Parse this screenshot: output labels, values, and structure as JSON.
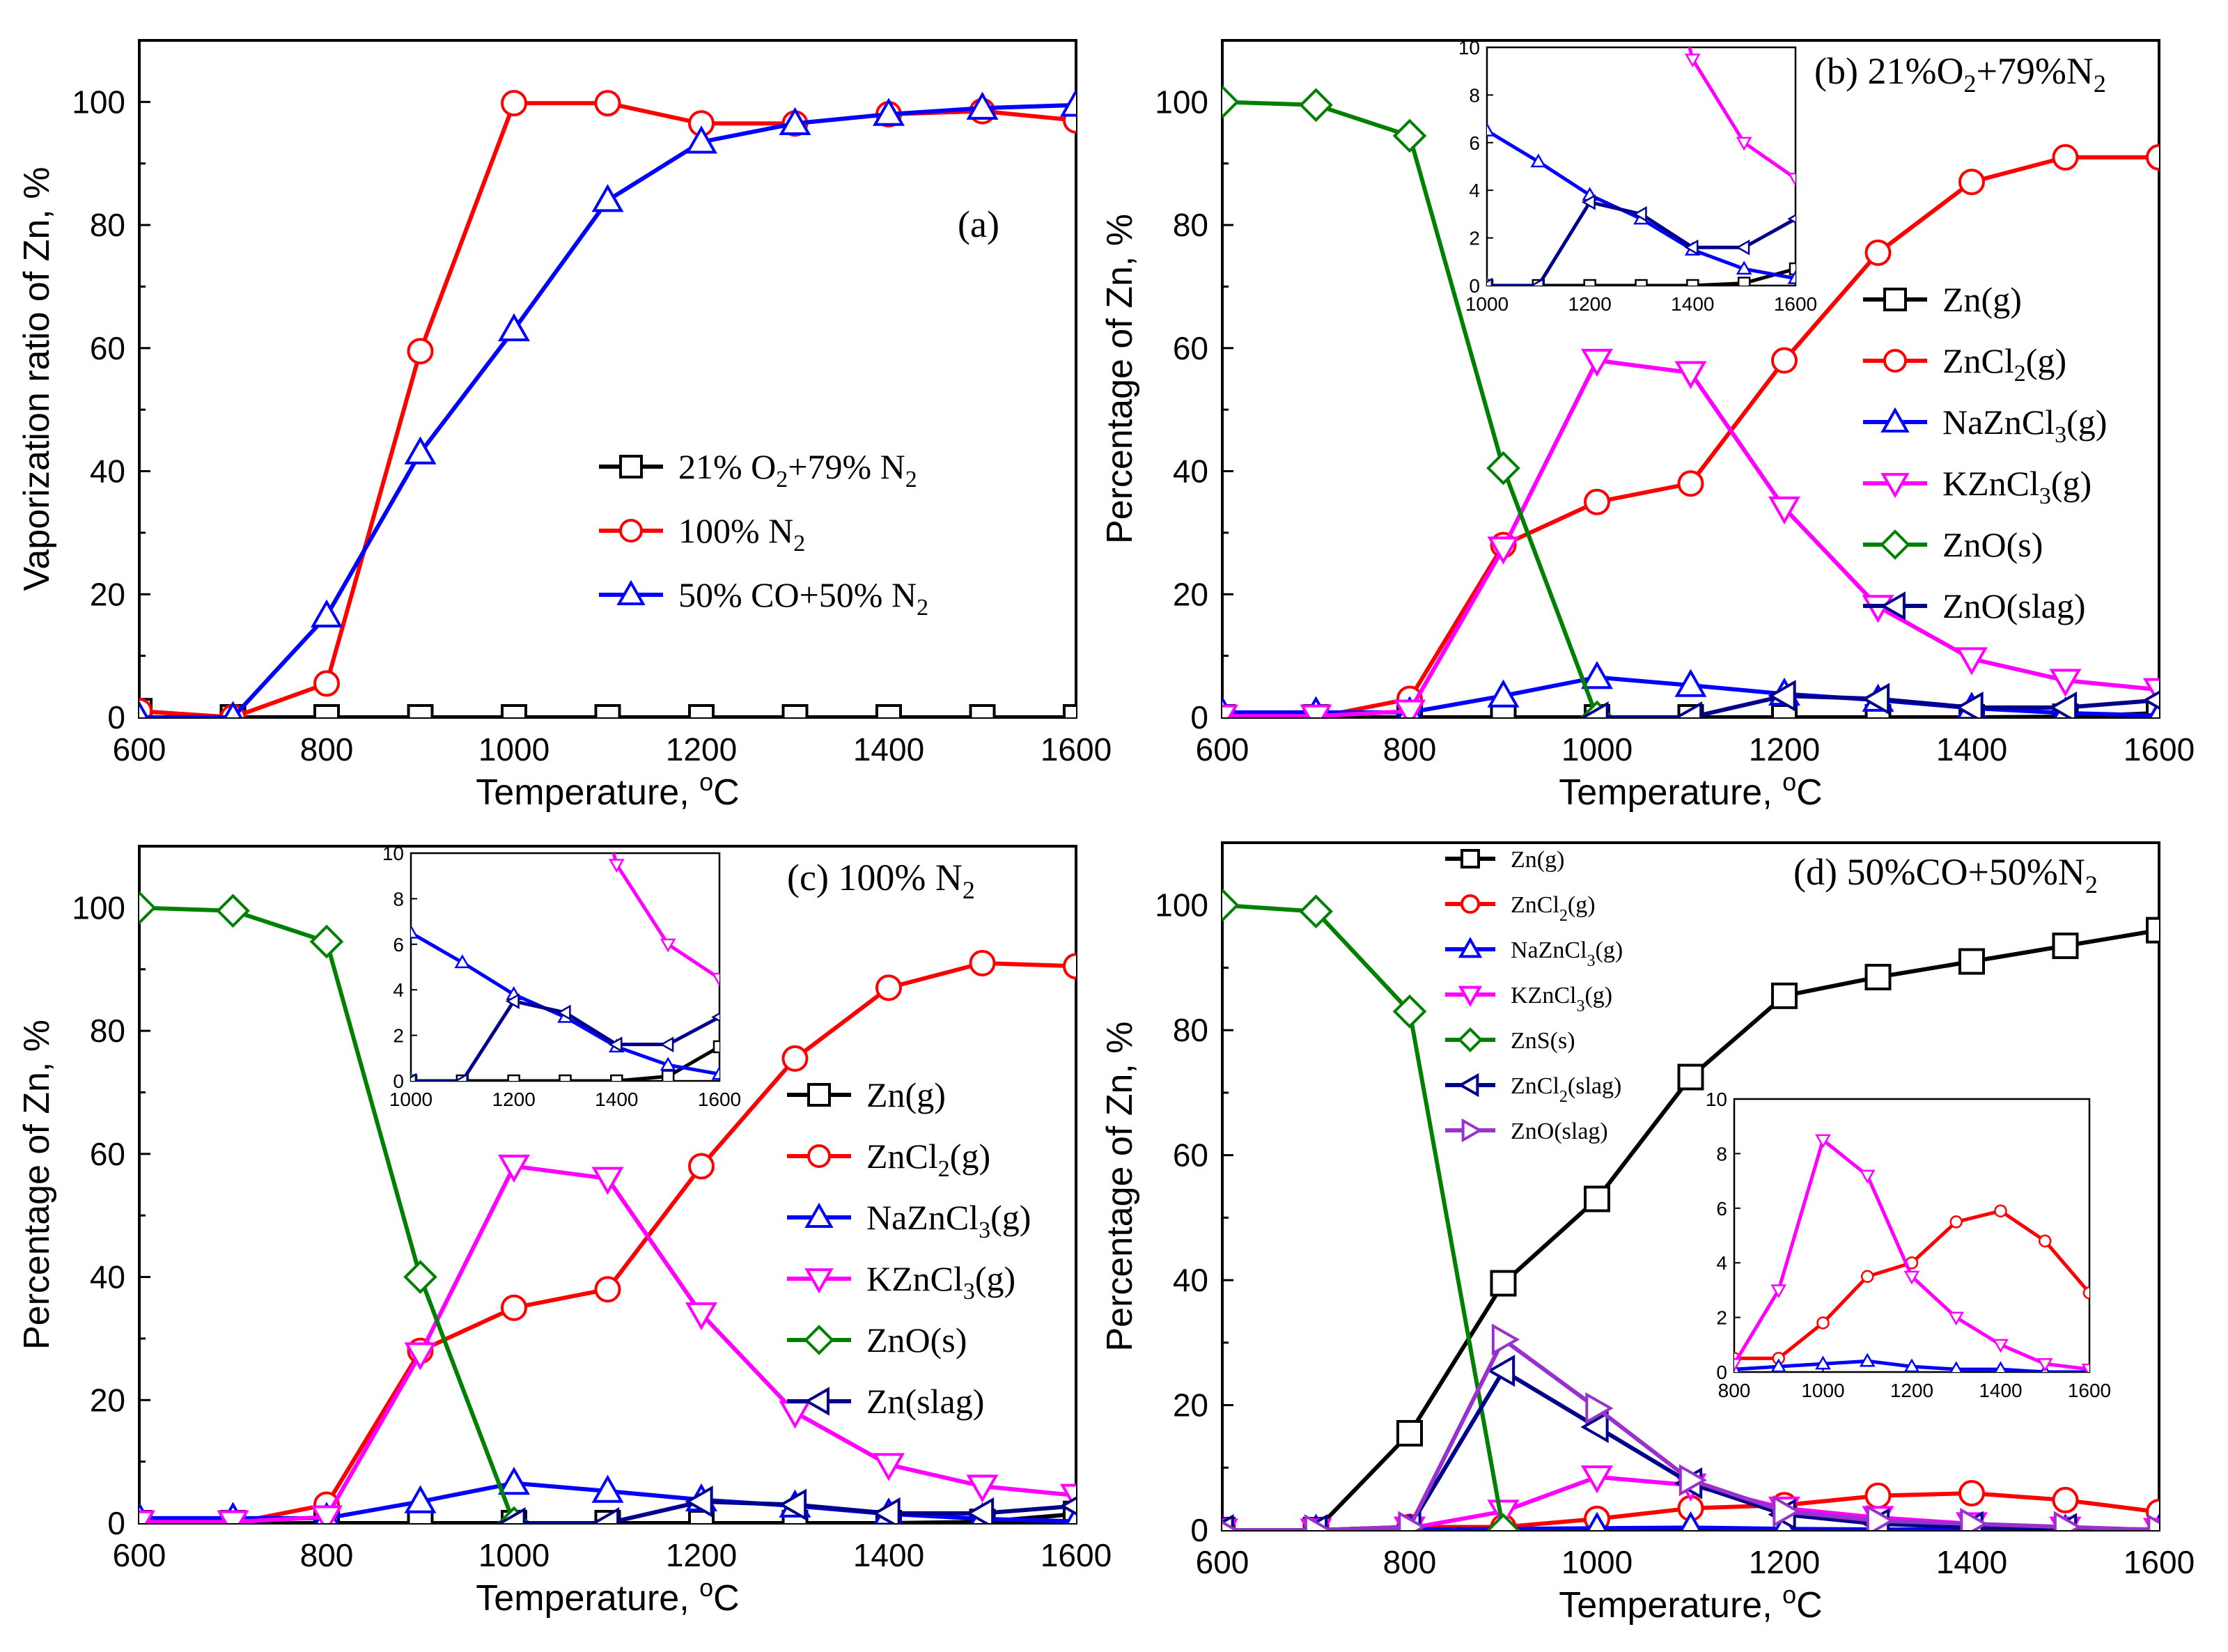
{
  "figure": {
    "x_axis_label": "Temperature, ",
    "x_axis_unit": "C",
    "degree_mark": "o"
  },
  "chart_data": [
    {
      "id": "a",
      "type": "line",
      "title": "(a)",
      "xlabel": "Temperature, °C",
      "ylabel": "Vaporization ratio of Zn, %",
      "xlim": [
        600,
        1600
      ],
      "ylim": [
        0,
        110
      ],
      "x": [
        600,
        700,
        800,
        900,
        1000,
        1100,
        1200,
        1300,
        1400,
        1500,
        1600
      ],
      "series": [
        {
          "name": "21% O2+79% N2",
          "label_parts": [
            "21% O",
            "2",
            "+79% N",
            "2"
          ],
          "color": "#000000",
          "marker": "square",
          "values": [
            1,
            0,
            0,
            0,
            0,
            0,
            0,
            0,
            0,
            0,
            0
          ]
        },
        {
          "name": "100% N2",
          "label_parts": [
            "100% N",
            "2"
          ],
          "color": "#ff0000",
          "marker": "circle",
          "values": [
            1,
            0,
            5.5,
            59.5,
            99.8,
            99.8,
            96.5,
            96.5,
            98,
            98.5,
            97
          ]
        },
        {
          "name": "50% CO+50% N2",
          "label_parts": [
            "50% CO+50% N",
            "2"
          ],
          "color": "#0000ff",
          "marker": "triangle-up",
          "values": [
            0,
            0,
            16.5,
            43,
            63,
            84,
            93.5,
            96.5,
            98,
            99,
            99.5
          ]
        }
      ],
      "legend_position": "center-right"
    },
    {
      "id": "b",
      "type": "line",
      "title": "(b) 21%O2+79%N2",
      "title_parts": [
        "(b) 21%O",
        "2",
        "+79%N",
        "2"
      ],
      "xlabel": "Temperature, °C",
      "ylabel": "Percentage of Zn, %",
      "xlim": [
        600,
        1600
      ],
      "ylim": [
        0,
        110
      ],
      "x": [
        600,
        700,
        800,
        900,
        1000,
        1100,
        1200,
        1300,
        1400,
        1500,
        1600
      ],
      "series": [
        {
          "name": "Zn(g)",
          "label_parts": [
            "Zn(g)"
          ],
          "color": "#000000",
          "marker": "square",
          "values": [
            0,
            0,
            0,
            0,
            0,
            0,
            0,
            0,
            0,
            0.1,
            0.7
          ]
        },
        {
          "name": "ZnCl2(g)",
          "label_parts": [
            "ZnCl",
            "2",
            "(g)"
          ],
          "color": "#ff0000",
          "marker": "circle",
          "values": [
            0,
            0,
            3,
            28,
            35,
            38,
            58,
            75.5,
            87,
            91,
            91
          ]
        },
        {
          "name": "NaZnCl3(g)",
          "label_parts": [
            "NaZnCl",
            "3",
            "(g)"
          ],
          "color": "#0000ff",
          "marker": "triangle-up",
          "values": [
            0.8,
            0.8,
            0.8,
            3.5,
            6.5,
            5.2,
            3.8,
            2.8,
            1.5,
            0.7,
            0.3
          ]
        },
        {
          "name": "KZnCl3(g)",
          "label_parts": [
            "KZnCl",
            "3",
            "(g)"
          ],
          "color": "#ff00ff",
          "marker": "triangle-down",
          "values": [
            0.2,
            0.2,
            1,
            27.5,
            58,
            56,
            34,
            18,
            9.5,
            6,
            4.5
          ]
        },
        {
          "name": "ZnO(s)",
          "label_parts": [
            "ZnO(s)"
          ],
          "color": "#008000",
          "marker": "diamond",
          "values": [
            100,
            99.5,
            94.5,
            40.5,
            0,
            null,
            null,
            null,
            null,
            null,
            null
          ]
        },
        {
          "name": "ZnO(slag)",
          "label_parts": [
            "ZnO(slag)"
          ],
          "color": "#00008b",
          "marker": "triangle-left",
          "values": [
            null,
            null,
            null,
            null,
            0,
            0,
            3.5,
            3,
            1.6,
            1.6,
            2.8
          ]
        }
      ],
      "legend_position": "center-right",
      "inset": {
        "xlim": [
          1000,
          1600
        ],
        "ylim": [
          0,
          10
        ],
        "xticks": [
          1000,
          1200,
          1400,
          1600
        ],
        "yticks": [
          0,
          2,
          4,
          6,
          8,
          10
        ],
        "position": "top-center"
      }
    },
    {
      "id": "c",
      "type": "line",
      "title": "(c) 100% N2",
      "title_parts": [
        "(c) 100% N",
        "2"
      ],
      "xlabel": "Temperature, °C",
      "ylabel": "Percentage of Zn, %",
      "xlim": [
        600,
        1600
      ],
      "ylim": [
        0,
        110
      ],
      "x": [
        600,
        700,
        800,
        900,
        1000,
        1100,
        1200,
        1300,
        1400,
        1500,
        1600
      ],
      "series": [
        {
          "name": "Zn(g)",
          "label_parts": [
            "Zn(g)"
          ],
          "color": "#000000",
          "marker": "square",
          "values": [
            0,
            0,
            0,
            0,
            0,
            0,
            0,
            0,
            0,
            0.2,
            1.5
          ]
        },
        {
          "name": "ZnCl2(g)",
          "label_parts": [
            "ZnCl",
            "2",
            "(g)"
          ],
          "color": "#ff0000",
          "marker": "circle",
          "values": [
            0,
            0,
            3,
            28,
            35,
            38,
            58,
            75.5,
            87,
            91,
            90.5
          ]
        },
        {
          "name": "NaZnCl3(g)",
          "label_parts": [
            "NaZnCl",
            "3",
            "(g)"
          ],
          "color": "#0000ff",
          "marker": "triangle-up",
          "values": [
            0.8,
            0.8,
            0.8,
            3.5,
            6.5,
            5.2,
            3.8,
            2.8,
            1.5,
            0.7,
            0.3
          ]
        },
        {
          "name": "KZnCl3(g)",
          "label_parts": [
            "KZnCl",
            "3",
            "(g)"
          ],
          "color": "#ff00ff",
          "marker": "triangle-down",
          "values": [
            0.2,
            0.2,
            1,
            27.5,
            58,
            56,
            34,
            18,
            9.5,
            6,
            4.5
          ]
        },
        {
          "name": "ZnO(s)",
          "label_parts": [
            "ZnO(s)"
          ],
          "color": "#008000",
          "marker": "diamond",
          "values": [
            100,
            99.5,
            94.5,
            40,
            0,
            null,
            null,
            null,
            null,
            null,
            null
          ]
        },
        {
          "name": "Zn(slag)",
          "label_parts": [
            "Zn(slag)"
          ],
          "color": "#00008b",
          "marker": "triangle-left",
          "values": [
            null,
            null,
            null,
            null,
            0,
            0,
            3.5,
            3,
            1.6,
            1.6,
            2.8
          ]
        }
      ],
      "legend_position": "center-right",
      "inset": {
        "xlim": [
          1000,
          1600
        ],
        "ylim": [
          0,
          10
        ],
        "xticks": [
          1000,
          1200,
          1400,
          1600
        ],
        "yticks": [
          0,
          2,
          4,
          6,
          8,
          10
        ],
        "position": "top-center"
      }
    },
    {
      "id": "d",
      "type": "line",
      "title": "(d) 50%CO+50%N2",
      "title_parts": [
        "(d) 50%CO+50%N",
        "2"
      ],
      "xlabel": "Temperature, °C",
      "ylabel": "Percentage of Zn, %",
      "xlim": [
        600,
        1600
      ],
      "ylim": [
        0,
        110
      ],
      "x": [
        600,
        700,
        800,
        900,
        1000,
        1100,
        1200,
        1300,
        1400,
        1500,
        1600
      ],
      "series": [
        {
          "name": "Zn(g)",
          "label_parts": [
            "Zn(g)"
          ],
          "color": "#000000",
          "marker": "square",
          "values": [
            0,
            0,
            15.5,
            39.5,
            53,
            72.5,
            85.5,
            88.5,
            91,
            93.5,
            96
          ]
        },
        {
          "name": "ZnCl2(g)",
          "label_parts": [
            "ZnCl",
            "2",
            "(g)"
          ],
          "color": "#ff0000",
          "marker": "circle",
          "values": [
            0,
            0,
            0.5,
            0.5,
            1.8,
            3.5,
            4,
            5.5,
            5.9,
            4.8,
            2.9
          ]
        },
        {
          "name": "NaZnCl3(g)",
          "label_parts": [
            "NaZnCl",
            "3",
            "(g)"
          ],
          "color": "#0000ff",
          "marker": "triangle-up",
          "values": [
            0,
            0,
            0.1,
            0.2,
            0.3,
            0.4,
            0.2,
            0.1,
            0.1,
            0,
            0
          ]
        },
        {
          "name": "KZnCl3(g)",
          "label_parts": [
            "KZnCl",
            "3",
            "(g)"
          ],
          "color": "#ff00ff",
          "marker": "triangle-down",
          "values": [
            0,
            0,
            0.3,
            3,
            8.5,
            7.2,
            3.5,
            2,
            1,
            0.3,
            0.1
          ]
        },
        {
          "name": "ZnS(s)",
          "label_parts": [
            "ZnS(s)"
          ],
          "color": "#008000",
          "marker": "diamond",
          "values": [
            100,
            99,
            83,
            0,
            null,
            null,
            null,
            null,
            null,
            null,
            null
          ]
        },
        {
          "name": "ZnCl2(slag)",
          "label_parts": [
            "ZnCl",
            "2",
            "(slag)"
          ],
          "color": "#00008b",
          "marker": "triangle-left",
          "values": [
            0,
            0,
            0.5,
            25.5,
            16.5,
            7.5,
            2.5,
            1,
            0.5,
            0.2,
            0
          ]
        },
        {
          "name": "ZnO(slag)",
          "label_parts": [
            "ZnO(slag)"
          ],
          "color": "#9932cc",
          "marker": "triangle-right",
          "values": [
            0,
            0,
            0.5,
            30.5,
            19.5,
            8,
            3,
            1.5,
            1,
            0.5,
            0
          ]
        }
      ],
      "legend_position": "top-left",
      "inset": {
        "xlim": [
          800,
          1600
        ],
        "ylim": [
          0,
          10
        ],
        "xticks": [
          800,
          1000,
          1200,
          1400,
          1600
        ],
        "yticks": [
          0,
          2,
          4,
          6,
          8,
          10
        ],
        "series": [
          "ZnCl2(g)",
          "NaZnCl3(g)",
          "KZnCl3(g)"
        ],
        "position": "lower-right"
      }
    }
  ]
}
